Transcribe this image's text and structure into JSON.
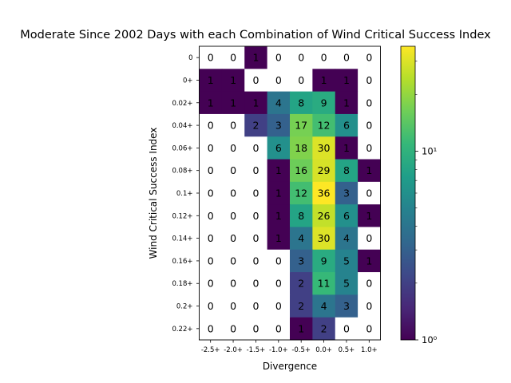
{
  "chart_data": {
    "type": "heatmap",
    "title": "Moderate Since 2002 Days with each Combination of Wind Critical Success Index",
    "xlabel": "Divergence",
    "ylabel": "Wind Critical Success Index",
    "x_categories": [
      "-2.5+",
      "-2.0+",
      "-1.5+",
      "-1.0+",
      "-0.5+",
      "0.0+",
      "0.5+",
      "1.0+"
    ],
    "y_categories": [
      "0",
      "0+",
      "0.02+",
      "0.04+",
      "0.06+",
      "0.08+",
      "0.1+",
      "0.12+",
      "0.14+",
      "0.16+",
      "0.18+",
      "0.2+",
      "0.22+"
    ],
    "values": [
      [
        0,
        0,
        1,
        0,
        0,
        0,
        0,
        0
      ],
      [
        1,
        1,
        0,
        0,
        0,
        1,
        1,
        0
      ],
      [
        1,
        1,
        1,
        4,
        8,
        9,
        1,
        0
      ],
      [
        0,
        0,
        2,
        3,
        17,
        12,
        6,
        0
      ],
      [
        0,
        0,
        0,
        6,
        18,
        30,
        1,
        0
      ],
      [
        0,
        0,
        0,
        1,
        16,
        29,
        8,
        1
      ],
      [
        0,
        0,
        0,
        1,
        12,
        36,
        3,
        0
      ],
      [
        0,
        0,
        0,
        1,
        8,
        26,
        6,
        1
      ],
      [
        0,
        0,
        0,
        1,
        4,
        30,
        4,
        0
      ],
      [
        0,
        0,
        0,
        0,
        3,
        9,
        5,
        1
      ],
      [
        0,
        0,
        0,
        0,
        2,
        11,
        5,
        0
      ],
      [
        0,
        0,
        0,
        0,
        2,
        4,
        3,
        0
      ],
      [
        0,
        0,
        0,
        0,
        1,
        2,
        0,
        0
      ]
    ],
    "colorscale": "viridis",
    "color_scale_type": "log",
    "color_range": [
      1,
      36
    ],
    "colorbar_ticks": [
      {
        "value": 1,
        "label": "10⁰"
      },
      {
        "value": 10,
        "label": "10¹"
      }
    ],
    "zero_cell_color": "#ffffff"
  }
}
